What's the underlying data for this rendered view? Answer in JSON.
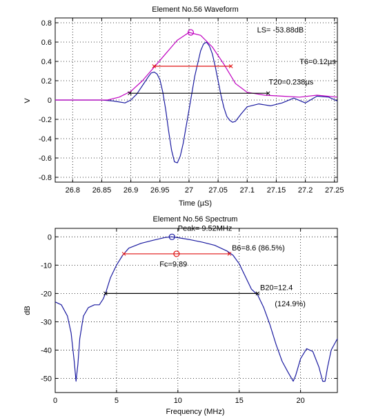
{
  "chart_data": [
    {
      "type": "line",
      "title": "Element No.56 Waveform",
      "xlabel": "Time (µS)",
      "ylabel": "V",
      "xlim": [
        26.77,
        27.255
      ],
      "ylim": [
        -0.85,
        0.85
      ],
      "xticks": [
        26.8,
        26.85,
        26.9,
        26.95,
        27,
        27.05,
        27.1,
        27.15,
        27.2,
        27.25
      ],
      "xtick_labels": [
        "26.8",
        "26.85",
        "26.9",
        "26.95",
        "27",
        "27.05",
        "27.1",
        "27.15",
        "27.2",
        "27.25"
      ],
      "yticks": [
        -0.8,
        -0.6,
        -0.4,
        -0.2,
        0,
        0.2,
        0.4,
        0.6,
        0.8
      ],
      "ytick_labels": [
        "-0.8",
        "-0.6",
        "-0.4",
        "-0.2",
        "0",
        "0.2",
        "0.4",
        "0.6",
        "0.8"
      ],
      "grid": true,
      "colors": {
        "waveform": "#1a1aa0",
        "envelope": "#c000c0",
        "t6": "#e01010",
        "t20": "#000000",
        "axis": "#000000",
        "grid": "#000000"
      },
      "series": [
        {
          "role": "waveform",
          "x": [
            26.77,
            26.8,
            26.83,
            26.85,
            26.87,
            26.89,
            26.9,
            26.91,
            26.92,
            26.93,
            26.935,
            26.94,
            26.945,
            26.95,
            26.955,
            26.96,
            26.965,
            26.97,
            26.975,
            26.98,
            26.985,
            26.99,
            27.0,
            27.01,
            27.02,
            27.025,
            27.03,
            27.035,
            27.04,
            27.045,
            27.05,
            27.055,
            27.06,
            27.065,
            27.07,
            27.075,
            27.08,
            27.09,
            27.1,
            27.12,
            27.14,
            27.16,
            27.18,
            27.2,
            27.22,
            27.24,
            27.255
          ],
          "y": [
            0,
            0,
            0,
            0,
            -0.01,
            -0.03,
            0,
            0.06,
            0.15,
            0.24,
            0.28,
            0.29,
            0.27,
            0.21,
            0.08,
            -0.1,
            -0.32,
            -0.52,
            -0.64,
            -0.65,
            -0.58,
            -0.45,
            -0.1,
            0.25,
            0.51,
            0.58,
            0.6,
            0.56,
            0.48,
            0.35,
            0.2,
            0.05,
            -0.08,
            -0.17,
            -0.21,
            -0.23,
            -0.22,
            -0.14,
            -0.07,
            -0.04,
            -0.06,
            -0.03,
            0.02,
            -0.03,
            0.04,
            0.03,
            -0.01
          ]
        },
        {
          "role": "envelope",
          "x": [
            26.77,
            26.8,
            26.83,
            26.86,
            26.88,
            26.9,
            26.92,
            26.94,
            26.96,
            26.98,
            27.0,
            27.02,
            27.04,
            27.06,
            27.08,
            27.1,
            27.13,
            27.16,
            27.19,
            27.22,
            27.255
          ],
          "y": [
            0,
            0,
            0,
            0,
            0.03,
            0.09,
            0.2,
            0.34,
            0.48,
            0.62,
            0.7,
            0.67,
            0.55,
            0.37,
            0.17,
            0.08,
            0.05,
            0.04,
            0.03,
            0.05,
            0.03
          ]
        }
      ],
      "markers": {
        "peak": {
          "x": 27.003,
          "y": 0.7
        },
        "t6_line": {
          "x1": 26.94,
          "x2": 27.072,
          "y": 0.35
        },
        "t20_line": {
          "x1": 26.898,
          "x2": 27.136,
          "y": 0.07
        }
      },
      "annotations": [
        {
          "text": "LS= -53.88dB",
          "x": 27.117,
          "y": 0.7
        },
        {
          "text": "T6=0.12µs",
          "x": 27.19,
          "y": 0.37
        },
        {
          "text": "T20=0.238µs",
          "x": 27.137,
          "y": 0.16
        }
      ]
    },
    {
      "type": "line",
      "title": "Element No.56 Spectrum",
      "xlabel": "Frequency (MHz)",
      "ylabel": "dB",
      "xlim": [
        0,
        23
      ],
      "ylim": [
        -55,
        3
      ],
      "xticks": [
        0,
        5,
        10,
        15,
        20
      ],
      "xtick_labels": [
        "0",
        "5",
        "10",
        "15",
        "20"
      ],
      "yticks": [
        -50,
        -40,
        -30,
        -20,
        -10,
        0
      ],
      "ytick_labels": [
        "-50",
        "-40",
        "-30",
        "-20",
        "-10",
        "0"
      ],
      "grid": true,
      "colors": {
        "spectrum": "#1a1aa0",
        "b6": "#e01010",
        "b20": "#000000",
        "fc": "#e01010"
      },
      "series": [
        {
          "role": "spectrum",
          "x": [
            0,
            0.5,
            1.0,
            1.3,
            1.55,
            1.7,
            1.85,
            2.0,
            2.3,
            2.7,
            3.2,
            3.6,
            3.9,
            4.1,
            4.5,
            5.0,
            5.5,
            6.0,
            7.0,
            8.0,
            9.0,
            9.5,
            10.0,
            11.0,
            12.0,
            13.0,
            14.0,
            14.5,
            15.0,
            15.5,
            16.0,
            16.5,
            17.0,
            17.5,
            18.0,
            18.5,
            19.0,
            19.4,
            19.6,
            20.0,
            20.5,
            21.0,
            21.5,
            21.8,
            22.0,
            22.2,
            22.5,
            23.0
          ],
          "y": [
            -23,
            -24,
            -28,
            -34,
            -44,
            -51,
            -45,
            -36,
            -28,
            -25,
            -24,
            -24,
            -22,
            -20,
            -14.5,
            -10,
            -6.5,
            -4,
            -2.3,
            -1.2,
            -0.2,
            0,
            -0.3,
            -1.0,
            -1.9,
            -3.0,
            -5.0,
            -6.5,
            -9.5,
            -14,
            -18.5,
            -20.5,
            -25,
            -31,
            -38,
            -44,
            -48,
            -51,
            -49,
            -43,
            -39.5,
            -40.5,
            -46,
            -51,
            -51,
            -46,
            -40,
            -36
          ]
        }
      ],
      "markers": {
        "peak": {
          "x": 9.52,
          "y": 0
        },
        "fc": {
          "x": 9.89,
          "y": -6
        },
        "b6_line": {
          "x1": 5.6,
          "x2": 14.2,
          "y": -6
        },
        "b20_line": {
          "x1": 4.1,
          "x2": 16.5,
          "y": -20
        }
      },
      "annotations": [
        {
          "text": "Peak= 9.52MHz",
          "x": 10.0,
          "y": 2.2
        },
        {
          "text": "B6=8.6 (86.5%)",
          "x": 14.4,
          "y": -4.8
        },
        {
          "text": "Fc=9.89",
          "x": 8.5,
          "y": -10.5
        },
        {
          "text": "B20=12.4",
          "x": 16.7,
          "y": -18.8
        },
        {
          "text": "(124.9%)",
          "x": 17.9,
          "y": -24.5
        }
      ]
    }
  ]
}
